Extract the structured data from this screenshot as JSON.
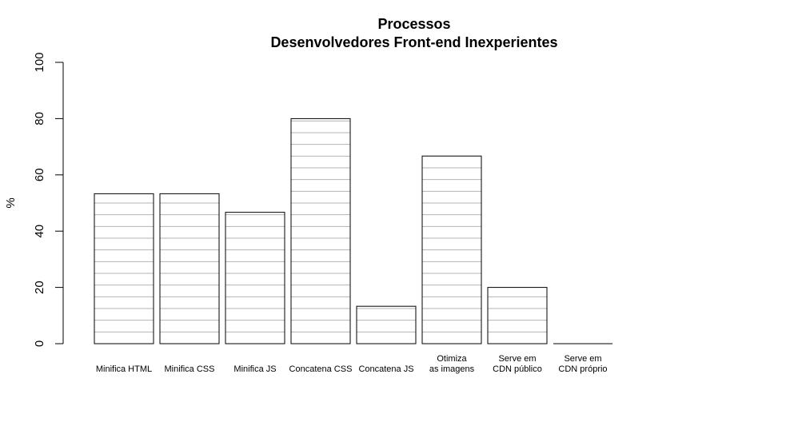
{
  "chart_data": {
    "type": "bar",
    "title": "Processos",
    "subtitle": "Desenvolvedores Front-end Inexperientes",
    "xlabel": "",
    "ylabel": "%",
    "ylim": [
      0,
      100
    ],
    "yticks": [
      "0",
      "20",
      "40",
      "60",
      "80",
      "100"
    ],
    "categories": [
      [
        "Minifica HTML"
      ],
      [
        "Minifica CSS"
      ],
      [
        "Minifica JS"
      ],
      [
        "Concatena CSS"
      ],
      [
        "Concatena JS"
      ],
      [
        "Otimiza",
        "as imagens"
      ],
      [
        "Serve em",
        "CDN público"
      ],
      [
        "Serve em",
        "CDN próprio"
      ]
    ],
    "values": [
      53.3,
      53.3,
      46.7,
      80,
      13.3,
      66.7,
      20,
      0
    ],
    "bar_fill": "#ffffff",
    "bar_border": "#000000",
    "hatch_color": "#b3b3b3"
  }
}
